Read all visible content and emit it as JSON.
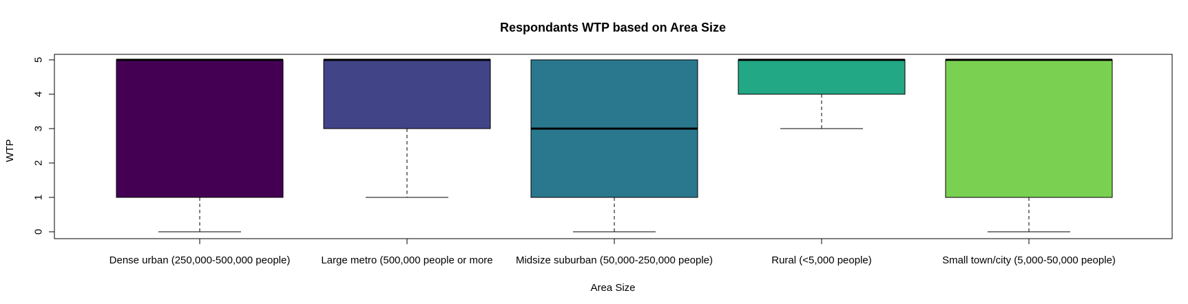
{
  "chart_data": {
    "type": "boxplot",
    "title": "Respondants WTP based on Area Size",
    "xlabel": "Area Size",
    "ylabel": "WTP",
    "ylim": [
      0,
      5
    ],
    "yticks": [
      0,
      1,
      2,
      3,
      4,
      5
    ],
    "categories": [
      "Dense urban (250,000-500,000 people)",
      "Large metro (500,000 people or more",
      "Midsize suburban (50,000-250,000 people)",
      "Rural (<5,000 people)",
      "Small town/city (5,000-50,000 people)"
    ],
    "boxes": [
      {
        "whisker_low": 0,
        "q1": 1,
        "median": 5,
        "q3": 5,
        "whisker_high": 5,
        "color": "#440154"
      },
      {
        "whisker_low": 1,
        "q1": 3,
        "median": 5,
        "q3": 5,
        "whisker_high": 5,
        "color": "#414487"
      },
      {
        "whisker_low": 0,
        "q1": 1,
        "median": 3,
        "q3": 5,
        "whisker_high": 5,
        "color": "#2A788E"
      },
      {
        "whisker_low": 3,
        "q1": 4,
        "median": 5,
        "q3": 5,
        "whisker_high": 5,
        "color": "#22A884"
      },
      {
        "whisker_low": 0,
        "q1": 1,
        "median": 5,
        "q3": 5,
        "whisker_high": 5,
        "color": "#7AD151"
      }
    ],
    "grid": false,
    "legend": "none"
  }
}
